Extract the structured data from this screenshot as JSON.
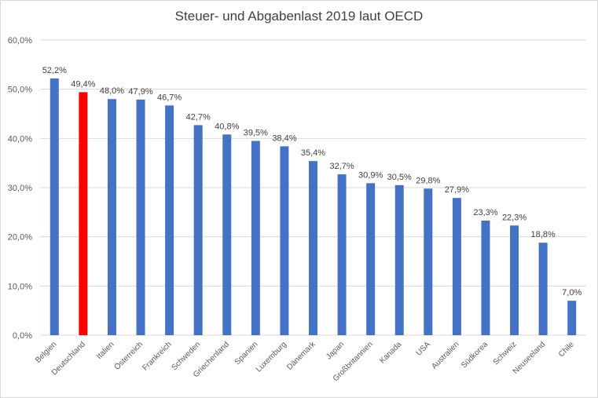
{
  "chart_data": {
    "type": "bar",
    "title": "Steuer- und Abgabenlast 2019 laut OECD",
    "xlabel": "",
    "ylabel": "",
    "ylim": [
      0,
      60
    ],
    "yticks": [
      0,
      10,
      20,
      30,
      40,
      50,
      60
    ],
    "ytick_labels": [
      "0,0%",
      "10,0%",
      "20,0%",
      "30,0%",
      "40,0%",
      "50,0%",
      "60,0%"
    ],
    "grid": true,
    "legend": "none",
    "categories": [
      "Belgien",
      "Deutschland",
      "Italien",
      "Österreich",
      "Frankreich",
      "Schweden",
      "Griechenland",
      "Spanien",
      "Luxemburg",
      "Dänemark",
      "Japan",
      "Großbritannien",
      "Kanada",
      "USA",
      "Australien",
      "Südkorea",
      "Schweiz",
      "Neuseeland",
      "Chile"
    ],
    "values": [
      52.2,
      49.4,
      48.0,
      47.9,
      46.7,
      42.7,
      40.8,
      39.5,
      38.4,
      35.4,
      32.7,
      30.9,
      30.5,
      29.8,
      27.9,
      23.3,
      22.3,
      18.8,
      7.0
    ],
    "data_labels": [
      "52,2%",
      "49,4%",
      "48,0%",
      "47,9%",
      "46,7%",
      "42,7%",
      "40,8%",
      "39,5%",
      "38,4%",
      "35,4%",
      "32,7%",
      "30,9%",
      "30,5%",
      "29,8%",
      "27,9%",
      "23,3%",
      "22,3%",
      "18,8%",
      "7,0%"
    ],
    "bar_color": "#4472c4",
    "highlight_color": "#ff0000",
    "highlight_index": 1
  }
}
